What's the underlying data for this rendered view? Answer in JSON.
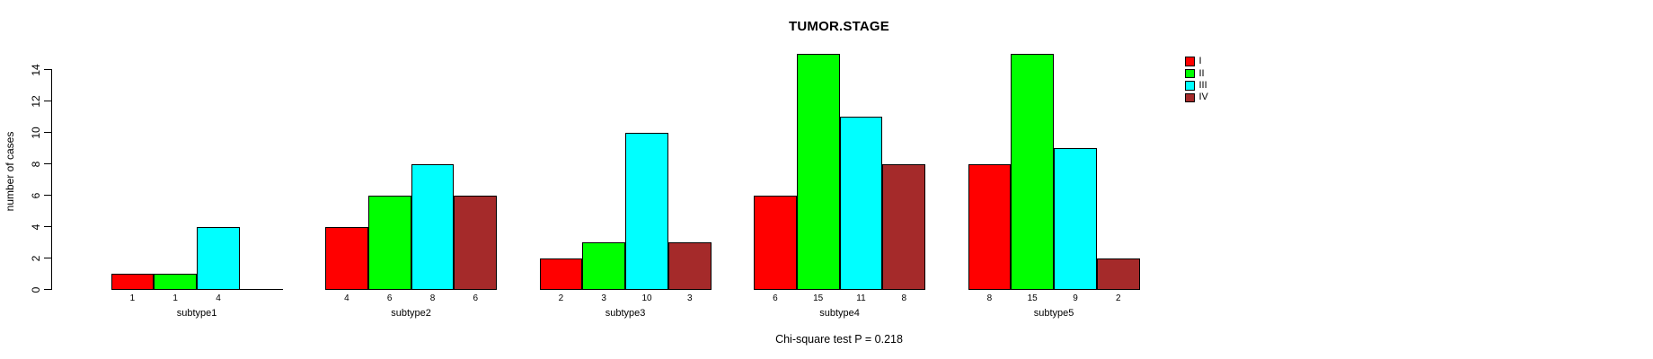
{
  "chart_data": {
    "type": "bar",
    "title": "TUMOR.STAGE",
    "ylabel": "number of cases",
    "xlabel": "",
    "annotation": "Chi-square test P = 0.218",
    "categories": [
      "subtype1",
      "subtype2",
      "subtype3",
      "subtype4",
      "subtype5"
    ],
    "series": [
      {
        "name": "I",
        "color": "#FF0000",
        "values": [
          1,
          4,
          2,
          6,
          8
        ]
      },
      {
        "name": "II",
        "color": "#00FF00",
        "values": [
          1,
          6,
          3,
          15,
          15
        ]
      },
      {
        "name": "III",
        "color": "#00FFFF",
        "values": [
          4,
          8,
          10,
          11,
          9
        ]
      },
      {
        "name": "IV",
        "color": "#A52A2A",
        "values": [
          0,
          6,
          3,
          8,
          2
        ]
      }
    ],
    "yticks": [
      0,
      2,
      4,
      6,
      8,
      10,
      12,
      14
    ],
    "ylim": [
      0,
      14
    ],
    "grid": false,
    "legend_position": "right",
    "bar_value_labels": true,
    "zero_bars_unlabeled": true
  }
}
